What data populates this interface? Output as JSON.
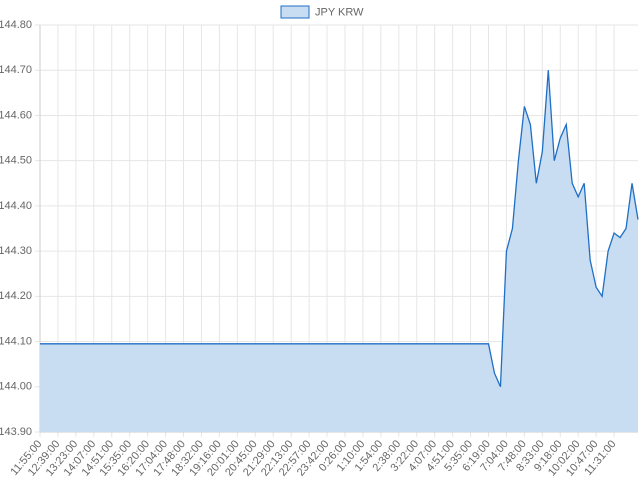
{
  "chart_data": {
    "type": "line",
    "categories": [
      "11:55:00",
      null,
      null,
      "12:39:00",
      null,
      null,
      "13:23:00",
      null,
      null,
      "14:07:00",
      null,
      null,
      "14:51:00",
      null,
      null,
      "15:35:00",
      null,
      null,
      "16:20:00",
      null,
      null,
      "17:04:00",
      null,
      null,
      "17:48:00",
      null,
      null,
      "18:32:00",
      null,
      null,
      "19:16:00",
      null,
      null,
      "20:01:00",
      null,
      null,
      "20:45:00",
      null,
      null,
      "21:29:00",
      null,
      null,
      "22:13:00",
      null,
      null,
      "22:57:00",
      null,
      null,
      "23:42:00",
      null,
      null,
      "0:26:00",
      null,
      null,
      "1:10:00",
      null,
      null,
      "1:54:00",
      null,
      null,
      "2:38:00",
      null,
      null,
      "3:22:00",
      null,
      null,
      "4:07:00",
      null,
      null,
      "4:51:00",
      null,
      null,
      "5:35:00",
      null,
      null,
      "6:19:00",
      null,
      null,
      "7:04:00",
      null,
      null,
      "7:48:00",
      null,
      null,
      "8:33:00",
      null,
      null,
      "9:18:00",
      null,
      null,
      "10:02:00",
      null,
      null,
      "10:47:00",
      null,
      null,
      "11:31:00",
      null,
      null,
      null,
      null
    ],
    "series": [
      {
        "name": "JPY KRW",
        "color": "#1f6fc5",
        "fill": "#c8dcf2",
        "values": [
          144.095,
          144.095,
          144.095,
          144.095,
          144.095,
          144.095,
          144.095,
          144.095,
          144.095,
          144.095,
          144.095,
          144.095,
          144.095,
          144.095,
          144.095,
          144.095,
          144.095,
          144.095,
          144.095,
          144.095,
          144.095,
          144.095,
          144.095,
          144.095,
          144.095,
          144.095,
          144.095,
          144.095,
          144.095,
          144.095,
          144.095,
          144.095,
          144.095,
          144.095,
          144.095,
          144.095,
          144.095,
          144.095,
          144.095,
          144.095,
          144.095,
          144.095,
          144.095,
          144.095,
          144.095,
          144.095,
          144.095,
          144.095,
          144.095,
          144.095,
          144.095,
          144.095,
          144.095,
          144.095,
          144.095,
          144.095,
          144.095,
          144.095,
          144.095,
          144.095,
          144.095,
          144.095,
          144.095,
          144.095,
          144.095,
          144.095,
          144.095,
          144.095,
          144.095,
          144.095,
          144.095,
          144.095,
          144.095,
          144.095,
          144.095,
          144.095,
          144.03,
          144.0,
          144.3,
          144.35,
          144.5,
          144.62,
          144.58,
          144.45,
          144.52,
          144.7,
          144.5,
          144.55,
          144.58,
          144.45,
          144.42,
          144.45,
          144.28,
          144.22,
          144.2,
          144.3,
          144.34,
          144.33,
          144.35,
          144.45,
          144.37
        ]
      }
    ],
    "ylim": [
      143.9,
      144.8
    ],
    "yticks": [
      {
        "value": 143.9,
        "label": "143.90"
      },
      {
        "value": 144.0,
        "label": "144.00"
      },
      {
        "value": 144.1,
        "label": "144.10"
      },
      {
        "value": 144.2,
        "label": "144.20"
      },
      {
        "value": 144.3,
        "label": "144.30"
      },
      {
        "value": 144.4,
        "label": "144.40"
      },
      {
        "value": 144.5,
        "label": "144.50"
      },
      {
        "value": 144.6,
        "label": "144.60"
      },
      {
        "value": 144.7,
        "label": "144.70"
      },
      {
        "value": 144.8,
        "label": "144.80"
      }
    ],
    "grid": true,
    "legend": "top"
  }
}
